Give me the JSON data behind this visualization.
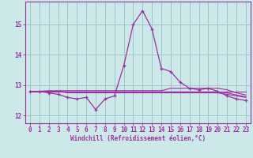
{
  "x": [
    0,
    1,
    2,
    3,
    4,
    5,
    6,
    7,
    8,
    9,
    10,
    11,
    12,
    13,
    14,
    15,
    16,
    17,
    18,
    19,
    20,
    21,
    22,
    23
  ],
  "line_temp": [
    12.8,
    12.8,
    12.8,
    12.8,
    12.8,
    12.8,
    12.8,
    12.8,
    12.8,
    12.8,
    12.8,
    12.8,
    12.8,
    12.8,
    12.8,
    12.8,
    12.8,
    12.8,
    12.8,
    12.8,
    12.8,
    12.8,
    12.8,
    12.8
  ],
  "line_wc_actual": [
    12.8,
    12.8,
    12.75,
    12.7,
    12.6,
    12.55,
    12.6,
    12.2,
    12.55,
    12.65,
    13.65,
    15.0,
    15.45,
    14.85,
    13.55,
    13.45,
    13.1,
    12.9,
    12.85,
    12.9,
    12.8,
    12.65,
    12.55,
    12.5
  ],
  "line_flat1": [
    12.8,
    12.8,
    12.8,
    12.8,
    12.75,
    12.75,
    12.75,
    12.75,
    12.75,
    12.75,
    12.75,
    12.75,
    12.75,
    12.75,
    12.75,
    12.75,
    12.75,
    12.75,
    12.75,
    12.75,
    12.75,
    12.7,
    12.65,
    12.6
  ],
  "line_flat2": [
    12.8,
    12.8,
    12.8,
    12.8,
    12.78,
    12.78,
    12.78,
    12.78,
    12.78,
    12.78,
    12.78,
    12.78,
    12.78,
    12.78,
    12.78,
    12.78,
    12.78,
    12.78,
    12.78,
    12.78,
    12.78,
    12.75,
    12.68,
    12.62
  ],
  "line_flat3": [
    12.8,
    12.8,
    12.82,
    12.82,
    12.82,
    12.82,
    12.82,
    12.82,
    12.82,
    12.82,
    12.82,
    12.82,
    12.82,
    12.82,
    12.82,
    12.9,
    12.9,
    12.9,
    12.9,
    12.9,
    12.9,
    12.85,
    12.75,
    12.68
  ],
  "line_color": "#9b30a0",
  "bg_color": "#cce8e8",
  "grid_color": "#a0c8c8",
  "xlabel": "Windchill (Refroidissement éolien,°C)",
  "ylim": [
    11.75,
    15.75
  ],
  "yticks": [
    12,
    13,
    14,
    15
  ],
  "xlim": [
    -0.5,
    23.5
  ],
  "xticks": [
    0,
    1,
    2,
    3,
    4,
    5,
    6,
    7,
    8,
    9,
    10,
    11,
    12,
    13,
    14,
    15,
    16,
    17,
    18,
    19,
    20,
    21,
    22,
    23
  ]
}
